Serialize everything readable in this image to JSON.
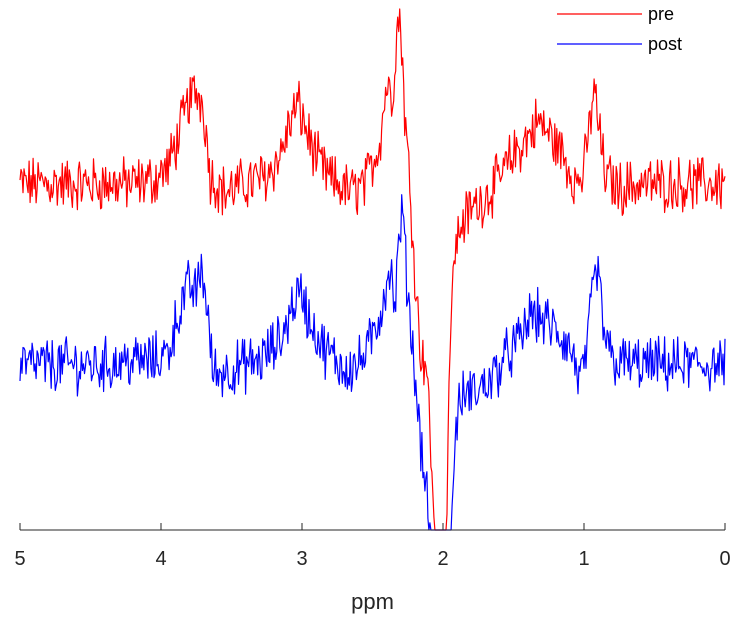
{
  "chart_data": {
    "type": "line",
    "xlabel": "ppm",
    "xlim": [
      5,
      0
    ],
    "x_reversed": true,
    "xticks": [
      5,
      4,
      3,
      2,
      1,
      0
    ],
    "y_axis_visible": false,
    "grid": false,
    "legend": {
      "position": "top-right",
      "entries": [
        "pre",
        "post"
      ]
    },
    "series": [
      {
        "name": "pre",
        "color": "#ff0000",
        "points": [
          [
            5.0,
            0.0
          ],
          [
            4.7,
            0.0
          ],
          [
            4.4,
            0.0
          ],
          [
            4.2,
            0.0
          ],
          [
            4.05,
            0.05
          ],
          [
            3.95,
            0.2
          ],
          [
            3.88,
            0.55
          ],
          [
            3.8,
            1.0
          ],
          [
            3.75,
            1.1
          ],
          [
            3.7,
            0.95
          ],
          [
            3.65,
            0.1
          ],
          [
            3.55,
            -0.1
          ],
          [
            3.4,
            0.0
          ],
          [
            3.25,
            0.1
          ],
          [
            3.15,
            0.35
          ],
          [
            3.08,
            0.75
          ],
          [
            3.03,
            0.95
          ],
          [
            2.98,
            0.7
          ],
          [
            2.9,
            0.3
          ],
          [
            2.8,
            0.05
          ],
          [
            2.65,
            -0.1
          ],
          [
            2.55,
            0.0
          ],
          [
            2.45,
            0.5
          ],
          [
            2.4,
            1.2
          ],
          [
            2.36,
            1.0
          ],
          [
            2.33,
            1.8
          ],
          [
            2.31,
            2.0
          ],
          [
            2.29,
            1.6
          ],
          [
            2.27,
            0.8
          ],
          [
            2.24,
            0.1
          ],
          [
            2.2,
            -1.0
          ],
          [
            2.16,
            -2.0
          ],
          [
            2.12,
            -2.1
          ],
          [
            2.09,
            -3.0
          ],
          [
            2.05,
            -4.5
          ],
          [
            2.02,
            -6.0
          ],
          [
            2.0,
            -7.0
          ],
          [
            1.98,
            -5.0
          ],
          [
            1.96,
            -2.5
          ],
          [
            1.93,
            -1.0
          ],
          [
            1.88,
            -0.5
          ],
          [
            1.8,
            -0.3
          ],
          [
            1.7,
            -0.15
          ],
          [
            1.6,
            0.05
          ],
          [
            1.5,
            0.35
          ],
          [
            1.4,
            0.55
          ],
          [
            1.33,
            0.75
          ],
          [
            1.25,
            0.6
          ],
          [
            1.15,
            0.35
          ],
          [
            1.05,
            0.0
          ],
          [
            1.0,
            0.15
          ],
          [
            0.96,
            0.7
          ],
          [
            0.93,
            1.15
          ],
          [
            0.9,
            0.75
          ],
          [
            0.85,
            0.1
          ],
          [
            0.75,
            -0.05
          ],
          [
            0.6,
            0.0
          ],
          [
            0.4,
            0.0
          ],
          [
            0.2,
            0.0
          ],
          [
            0.0,
            0.0
          ]
        ]
      },
      {
        "name": "post",
        "color": "#0000ff",
        "points": [
          [
            5.0,
            0.0
          ],
          [
            4.7,
            0.0
          ],
          [
            4.4,
            0.0
          ],
          [
            4.2,
            0.05
          ],
          [
            4.05,
            0.05
          ],
          [
            3.95,
            0.15
          ],
          [
            3.88,
            0.6
          ],
          [
            3.8,
            0.95
          ],
          [
            3.75,
            0.85
          ],
          [
            3.71,
            1.2
          ],
          [
            3.67,
            0.6
          ],
          [
            3.63,
            -0.1
          ],
          [
            3.5,
            -0.05
          ],
          [
            3.3,
            0.05
          ],
          [
            3.15,
            0.3
          ],
          [
            3.05,
            0.8
          ],
          [
            3.0,
            0.85
          ],
          [
            2.95,
            0.55
          ],
          [
            2.85,
            0.2
          ],
          [
            2.7,
            -0.05
          ],
          [
            2.6,
            0.0
          ],
          [
            2.5,
            0.3
          ],
          [
            2.42,
            0.8
          ],
          [
            2.38,
            1.2
          ],
          [
            2.34,
            0.7
          ],
          [
            2.31,
            1.5
          ],
          [
            2.29,
            1.9
          ],
          [
            2.26,
            1.1
          ],
          [
            2.22,
            0.3
          ],
          [
            2.18,
            -0.5
          ],
          [
            2.14,
            -1.2
          ],
          [
            2.11,
            -1.6
          ],
          [
            2.08,
            -2.3
          ],
          [
            2.05,
            -3.5
          ],
          [
            2.02,
            -5.0
          ],
          [
            2.0,
            -6.5
          ],
          [
            1.97,
            -4.5
          ],
          [
            1.94,
            -1.8
          ],
          [
            1.9,
            -0.6
          ],
          [
            1.85,
            -0.35
          ],
          [
            1.75,
            -0.3
          ],
          [
            1.65,
            -0.15
          ],
          [
            1.55,
            0.1
          ],
          [
            1.45,
            0.3
          ],
          [
            1.38,
            0.6
          ],
          [
            1.3,
            0.55
          ],
          [
            1.2,
            0.4
          ],
          [
            1.1,
            0.2
          ],
          [
            1.02,
            -0.2
          ],
          [
            0.97,
            0.3
          ],
          [
            0.93,
            1.0
          ],
          [
            0.9,
            1.1
          ],
          [
            0.86,
            0.4
          ],
          [
            0.8,
            0.05
          ],
          [
            0.6,
            0.0
          ],
          [
            0.4,
            0.0
          ],
          [
            0.2,
            0.0
          ],
          [
            0.0,
            0.0
          ]
        ]
      }
    ]
  }
}
